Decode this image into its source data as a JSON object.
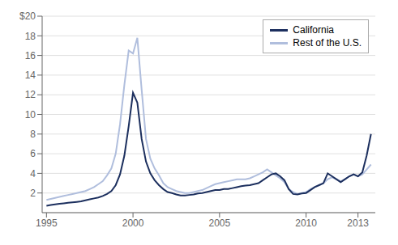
{
  "chart_data": {
    "type": "line",
    "x": [
      1995.0,
      1995.25,
      1995.5,
      1995.75,
      1996.0,
      1996.25,
      1996.5,
      1996.75,
      1997.0,
      1997.25,
      1997.5,
      1997.75,
      1998.0,
      1998.25,
      1998.5,
      1998.75,
      1999.0,
      1999.25,
      1999.5,
      1999.75,
      2000.0,
      2000.25,
      2000.5,
      2000.75,
      2001.0,
      2001.25,
      2001.5,
      2001.75,
      2002.0,
      2002.25,
      2002.5,
      2002.75,
      2003.0,
      2003.25,
      2003.5,
      2003.75,
      2004.0,
      2004.25,
      2004.5,
      2004.75,
      2005.0,
      2005.25,
      2005.5,
      2005.75,
      2006.0,
      2006.25,
      2006.5,
      2006.75,
      2007.0,
      2007.25,
      2007.5,
      2007.75,
      2008.0,
      2008.25,
      2008.5,
      2008.75,
      2009.0,
      2009.25,
      2009.5,
      2009.75,
      2010.0,
      2010.25,
      2010.5,
      2010.75,
      2011.0,
      2011.25,
      2011.5,
      2011.75,
      2012.0,
      2012.25,
      2012.5,
      2012.75,
      2013.0,
      2013.25,
      2013.5,
      2013.75
    ],
    "series": [
      {
        "name": "California",
        "color": "#1c2f5e",
        "values": [
          0.7,
          0.78,
          0.85,
          0.9,
          0.95,
          1.0,
          1.05,
          1.1,
          1.15,
          1.25,
          1.35,
          1.45,
          1.55,
          1.7,
          1.9,
          2.2,
          2.8,
          3.9,
          5.8,
          8.8,
          12.2,
          11.2,
          7.5,
          5.2,
          4.0,
          3.3,
          2.8,
          2.4,
          2.1,
          2.0,
          1.85,
          1.75,
          1.75,
          1.8,
          1.85,
          1.95,
          2.0,
          2.1,
          2.2,
          2.3,
          2.3,
          2.4,
          2.4,
          2.5,
          2.6,
          2.7,
          2.75,
          2.8,
          2.9,
          3.0,
          3.3,
          3.6,
          3.9,
          4.0,
          3.7,
          3.3,
          2.4,
          1.9,
          1.85,
          1.95,
          2.0,
          2.3,
          2.6,
          2.8,
          3.0,
          4.0,
          3.7,
          3.4,
          3.1,
          3.4,
          3.7,
          3.9,
          3.7,
          4.1,
          5.8,
          8.0
        ]
      },
      {
        "name": "Rest of the U.S.",
        "color": "#b0bedd",
        "values": [
          1.3,
          1.4,
          1.5,
          1.6,
          1.7,
          1.8,
          1.9,
          2.0,
          2.1,
          2.2,
          2.4,
          2.6,
          2.9,
          3.2,
          3.8,
          4.5,
          6.0,
          9.0,
          13.0,
          16.5,
          16.2,
          17.8,
          12.5,
          7.5,
          5.5,
          4.5,
          3.8,
          3.0,
          2.6,
          2.4,
          2.2,
          2.1,
          2.0,
          2.0,
          2.1,
          2.2,
          2.3,
          2.5,
          2.7,
          2.9,
          3.0,
          3.1,
          3.2,
          3.3,
          3.4,
          3.4,
          3.4,
          3.5,
          3.7,
          3.9,
          4.1,
          4.4,
          4.1,
          3.8,
          3.5,
          3.1,
          2.4,
          2.1,
          1.9,
          2.0,
          2.1,
          2.4,
          2.6,
          2.8,
          3.0,
          3.4,
          3.6,
          3.4,
          3.2,
          3.4,
          3.7,
          3.9,
          3.7,
          3.9,
          4.4,
          4.9
        ]
      }
    ],
    "xlim": [
      1994.75,
      2014.0
    ],
    "xticks": [
      1995,
      2000,
      2005,
      2010,
      2013
    ],
    "ylim": [
      0,
      20
    ],
    "yticks": [
      2,
      4,
      6,
      8,
      10,
      12,
      14,
      16,
      18,
      {
        "value": 20,
        "label": "$20"
      }
    ],
    "grid": "y",
    "legend": "upper right"
  }
}
